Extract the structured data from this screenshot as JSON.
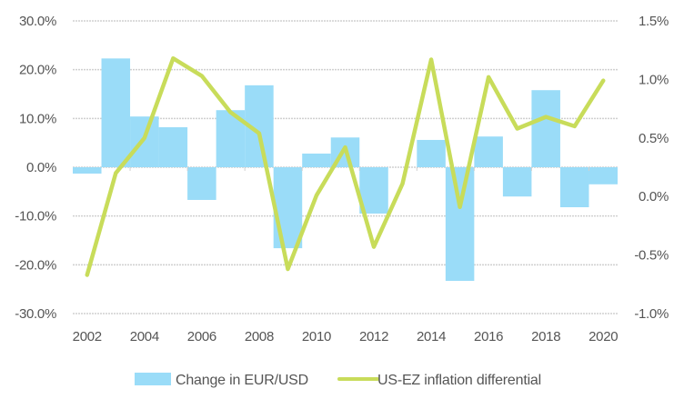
{
  "chart_data": {
    "type": "bar",
    "title": "",
    "xlabel": "",
    "ylabel": "",
    "categories": [
      "2002",
      "2003",
      "2004",
      "2005",
      "2006",
      "2007",
      "2008",
      "2009",
      "2010",
      "2011",
      "2012",
      "2013",
      "2014",
      "2015",
      "2016",
      "2017",
      "2018",
      "2019",
      "2020"
    ],
    "x_tick_labels": [
      "2002",
      "2004",
      "2006",
      "2008",
      "2010",
      "2012",
      "2014",
      "2016",
      "2018",
      "2020"
    ],
    "series": [
      {
        "name": "Change in EUR/USD",
        "type": "bar",
        "axis": "left",
        "color": "#9adcf8",
        "values": [
          -1.3,
          22.3,
          10.4,
          8.2,
          -6.7,
          11.7,
          16.8,
          -16.6,
          2.8,
          6.1,
          -9.5,
          0.0,
          5.6,
          -23.3,
          6.3,
          -6.0,
          15.8,
          -8.2,
          -3.5
        ]
      },
      {
        "name": "US-EZ inflation differential",
        "type": "line",
        "axis": "right",
        "color": "#c8dc5a",
        "values": [
          -0.67,
          0.2,
          0.5,
          1.18,
          1.03,
          0.72,
          0.54,
          -0.62,
          0.01,
          0.42,
          -0.43,
          0.11,
          1.17,
          -0.09,
          1.02,
          0.58,
          0.68,
          0.6,
          0.99
        ]
      }
    ],
    "left_axis": {
      "ylim": [
        -30,
        30
      ],
      "ticks": [
        30,
        20,
        10,
        0,
        -10,
        -20,
        -30
      ],
      "tick_labels": [
        "30.0%",
        "20.0%",
        "10.0%",
        "0.0%",
        "-10.0%",
        "-20.0%",
        "-30.0%"
      ]
    },
    "right_axis": {
      "ylim": [
        -1.0,
        1.5
      ],
      "ticks": [
        1.5,
        1.0,
        0.5,
        0.0,
        -0.5,
        -1.0
      ],
      "tick_labels": [
        "1.5%",
        "1.0%",
        "0.5%",
        "0.0%",
        "-0.5%",
        "-1.0%"
      ]
    },
    "grid": true,
    "legend": {
      "position": "bottom",
      "entries": [
        "Change in EUR/USD",
        "US-EZ inflation differential"
      ]
    }
  }
}
